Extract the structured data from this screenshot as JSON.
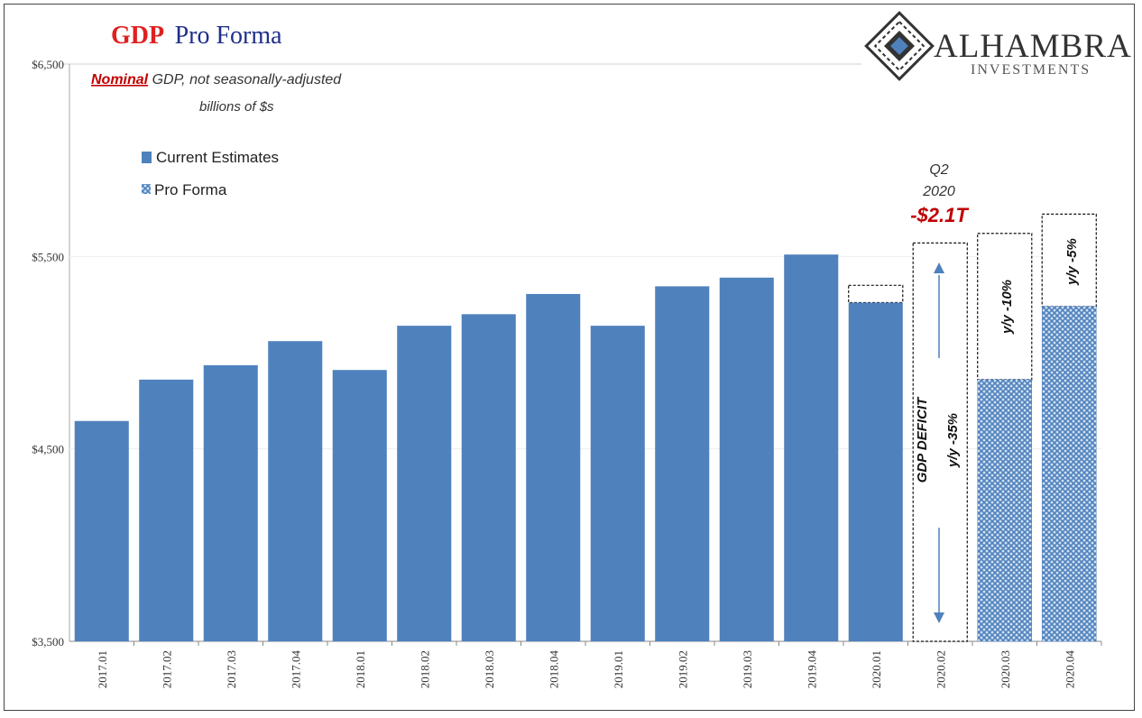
{
  "title": {
    "part1": "GDP",
    "part2": "Pro Forma"
  },
  "subtitle": {
    "emph": "Nominal",
    "line1_rest": " GDP, not seasonally-adjusted",
    "line2": "billions of $s"
  },
  "logo": {
    "name": "ALHAMBRA",
    "tagline": "INVESTMENTS"
  },
  "legend": {
    "current": "Current Estimates",
    "proforma": "Pro Forma"
  },
  "annotations": {
    "q2_line1": "Q2",
    "q2_line2": "2020",
    "deficit": "-$2.1T",
    "q2_box_line1": "GDP DEFICIT",
    "q2_box_line2": "y/y -35%",
    "q3_box": "y/y -10%",
    "q4_box": "y/y -5%"
  },
  "colors": {
    "bar": "#4f81bd",
    "title_red": "#e02020",
    "title_blue": "#1f2f8a",
    "deficit_red": "#c00000",
    "arrow": "#4f81bd"
  },
  "chart_data": {
    "type": "bar",
    "ylim": [
      3500,
      6500
    ],
    "yticks": [
      3500,
      4500,
      5500,
      6500
    ],
    "ytick_labels": [
      "$3,500",
      "$4,500",
      "$5,500",
      "$6,500"
    ],
    "categories": [
      "2017.01",
      "2017.02",
      "2017.03",
      "2017.04",
      "2018.01",
      "2018.02",
      "2018.03",
      "2018.04",
      "2019.01",
      "2019.02",
      "2019.03",
      "2019.04",
      "2020.01",
      "2020.02",
      "2020.03",
      "2020.04"
    ],
    "series": [
      {
        "name": "Current Estimates",
        "values": [
          4645,
          4860,
          4935,
          5060,
          4910,
          5140,
          5200,
          5305,
          5140,
          5345,
          5390,
          5510,
          5260,
          null,
          null,
          null
        ]
      },
      {
        "name": "Pro Forma",
        "values": [
          null,
          null,
          null,
          null,
          null,
          null,
          null,
          null,
          null,
          null,
          null,
          null,
          null,
          null,
          4860,
          5240
        ]
      }
    ],
    "gap_tops": [
      null,
      null,
      null,
      null,
      null,
      null,
      null,
      null,
      null,
      null,
      null,
      null,
      5350,
      5570,
      5620,
      5720
    ]
  }
}
